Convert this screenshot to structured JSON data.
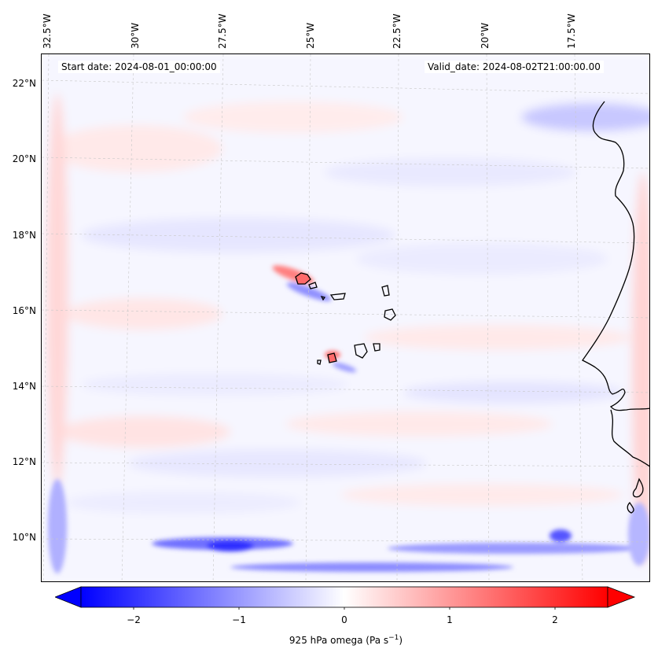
{
  "header": {
    "start_date": "Start date: 2024-08-01_00:00:00",
    "valid_date": "Valid_date: 2024-08-02T21:00:00.00"
  },
  "axes": {
    "lon_labels": [
      "32.5°W",
      "30°W",
      "27.5°W",
      "25°W",
      "22.5°W",
      "20°W",
      "17.5°W"
    ],
    "lat_labels": [
      "22°N",
      "20°N",
      "18°N",
      "16°N",
      "14°N",
      "12°N",
      "10°N"
    ],
    "lon_range": [
      -33,
      -16
    ],
    "lat_range": [
      8.9,
      22.8
    ],
    "gridlines": true
  },
  "colorbar": {
    "label": "925 hPa omega (Pa s",
    "label_sup": "−1",
    "label_end": ")",
    "ticks": [
      "−2",
      "−1",
      "0",
      "1",
      "2"
    ],
    "tick_values": [
      -2,
      -1,
      0,
      1,
      2
    ],
    "range": [
      -2.5,
      2.5
    ],
    "extend": "both",
    "colormap": "bwr",
    "color_low": "#0000ff",
    "color_mid": "#ffffff",
    "color_high": "#ff0000"
  },
  "map": {
    "field": "925 hPa omega",
    "projection": "lambert-conformal",
    "coastline_color": "#000000"
  }
}
